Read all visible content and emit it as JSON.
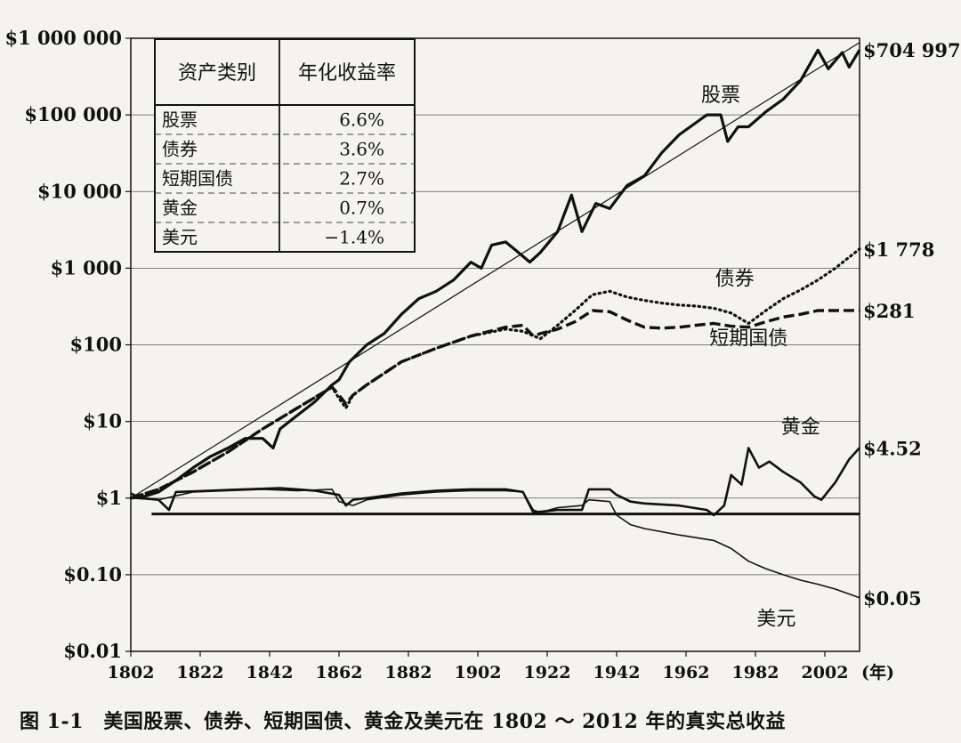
{
  "chart_data": {
    "type": "line",
    "y_scale": "log",
    "ylim": [
      0.01,
      1000000
    ],
    "y_tick_labels": [
      "$1 000 000",
      "$100 000",
      "$10 000",
      "$1 000",
      "$100",
      "$10",
      "$1",
      "$0.10",
      "$0.01"
    ],
    "y_tick_values": [
      1000000,
      100000,
      10000,
      1000,
      100,
      10,
      1,
      0.1,
      0.01
    ],
    "xlim": [
      1802,
      2012
    ],
    "x_tick_labels": [
      "1802",
      "1822",
      "1842",
      "1862",
      "1882",
      "1902",
      "1922",
      "1942",
      "1962",
      "1982",
      "2002"
    ],
    "x_tick_values": [
      1802,
      1822,
      1842,
      1862,
      1882,
      1902,
      1922,
      1942,
      1962,
      1982,
      2002
    ],
    "x_unit_label": "(年)",
    "series": [
      {
        "name": "股票",
        "end_label": "$704 997",
        "style": "solid-thick",
        "points": [
          [
            1802,
            1
          ],
          [
            1806,
            1.05
          ],
          [
            1810,
            1.2
          ],
          [
            1815,
            1.7
          ],
          [
            1820,
            2.5
          ],
          [
            1825,
            3.5
          ],
          [
            1830,
            4.5
          ],
          [
            1835,
            6
          ],
          [
            1840,
            6
          ],
          [
            1843,
            4.5
          ],
          [
            1845,
            8
          ],
          [
            1850,
            12
          ],
          [
            1855,
            18
          ],
          [
            1860,
            30
          ],
          [
            1862,
            35
          ],
          [
            1865,
            60
          ],
          [
            1870,
            100
          ],
          [
            1875,
            140
          ],
          [
            1880,
            250
          ],
          [
            1885,
            400
          ],
          [
            1890,
            500
          ],
          [
            1895,
            700
          ],
          [
            1900,
            1200
          ],
          [
            1903,
            1000
          ],
          [
            1906,
            2000
          ],
          [
            1910,
            2200
          ],
          [
            1913,
            1700
          ],
          [
            1917,
            1200
          ],
          [
            1920,
            1600
          ],
          [
            1925,
            3000
          ],
          [
            1929,
            9000
          ],
          [
            1932,
            3000
          ],
          [
            1936,
            7000
          ],
          [
            1940,
            6000
          ],
          [
            1945,
            12000
          ],
          [
            1950,
            16000
          ],
          [
            1955,
            32000
          ],
          [
            1960,
            55000
          ],
          [
            1965,
            80000
          ],
          [
            1968,
            100000
          ],
          [
            1972,
            100000
          ],
          [
            1974,
            45000
          ],
          [
            1977,
            70000
          ],
          [
            1980,
            70000
          ],
          [
            1985,
            110000
          ],
          [
            1990,
            160000
          ],
          [
            1995,
            280000
          ],
          [
            2000,
            700000
          ],
          [
            2003,
            400000
          ],
          [
            2007,
            650000
          ],
          [
            2009,
            420000
          ],
          [
            2012,
            704997
          ]
        ]
      },
      {
        "name": "",
        "style": "solid-thin-trend",
        "points": [
          [
            1802,
            1
          ],
          [
            2012,
            880000
          ]
        ]
      },
      {
        "name": "债券",
        "end_label": "$1 778",
        "style": "dotted",
        "points": [
          [
            1802,
            1
          ],
          [
            1810,
            1.3
          ],
          [
            1820,
            2.2
          ],
          [
            1830,
            4
          ],
          [
            1840,
            8
          ],
          [
            1850,
            15
          ],
          [
            1860,
            28
          ],
          [
            1862,
            20
          ],
          [
            1864,
            15
          ],
          [
            1866,
            22
          ],
          [
            1870,
            30
          ],
          [
            1880,
            60
          ],
          [
            1890,
            90
          ],
          [
            1900,
            130
          ],
          [
            1910,
            160
          ],
          [
            1915,
            150
          ],
          [
            1920,
            120
          ],
          [
            1925,
            180
          ],
          [
            1930,
            280
          ],
          [
            1935,
            450
          ],
          [
            1940,
            500
          ],
          [
            1945,
            420
          ],
          [
            1950,
            380
          ],
          [
            1955,
            350
          ],
          [
            1960,
            330
          ],
          [
            1965,
            320
          ],
          [
            1970,
            300
          ],
          [
            1975,
            260
          ],
          [
            1980,
            190
          ],
          [
            1985,
            280
          ],
          [
            1990,
            400
          ],
          [
            1995,
            520
          ],
          [
            2000,
            700
          ],
          [
            2005,
            1000
          ],
          [
            2012,
            1778
          ]
        ]
      },
      {
        "name": "短期国债",
        "end_label": "$281",
        "style": "dashed",
        "points": [
          [
            1802,
            1
          ],
          [
            1810,
            1.3
          ],
          [
            1820,
            2.2
          ],
          [
            1830,
            4
          ],
          [
            1840,
            8
          ],
          [
            1850,
            15
          ],
          [
            1860,
            28
          ],
          [
            1862,
            22
          ],
          [
            1864,
            17
          ],
          [
            1866,
            22
          ],
          [
            1870,
            30
          ],
          [
            1880,
            60
          ],
          [
            1890,
            90
          ],
          [
            1900,
            130
          ],
          [
            1910,
            170
          ],
          [
            1915,
            180
          ],
          [
            1918,
            130
          ],
          [
            1920,
            140
          ],
          [
            1925,
            160
          ],
          [
            1930,
            200
          ],
          [
            1935,
            280
          ],
          [
            1940,
            270
          ],
          [
            1945,
            210
          ],
          [
            1950,
            170
          ],
          [
            1955,
            165
          ],
          [
            1960,
            170
          ],
          [
            1965,
            180
          ],
          [
            1970,
            190
          ],
          [
            1975,
            175
          ],
          [
            1980,
            170
          ],
          [
            1985,
            200
          ],
          [
            1990,
            230
          ],
          [
            1995,
            250
          ],
          [
            2000,
            280
          ],
          [
            2005,
            280
          ],
          [
            2012,
            281
          ]
        ]
      },
      {
        "name": "黄金",
        "end_label": "$4.52",
        "style": "solid-medium",
        "points": [
          [
            1802,
            1.15
          ],
          [
            1805,
            1.0
          ],
          [
            1810,
            0.95
          ],
          [
            1813,
            0.7
          ],
          [
            1815,
            1.2
          ],
          [
            1825,
            1.25
          ],
          [
            1835,
            1.3
          ],
          [
            1845,
            1.35
          ],
          [
            1855,
            1.25
          ],
          [
            1862,
            1.1
          ],
          [
            1864,
            0.8
          ],
          [
            1866,
            0.95
          ],
          [
            1870,
            1.0
          ],
          [
            1880,
            1.15
          ],
          [
            1890,
            1.25
          ],
          [
            1900,
            1.3
          ],
          [
            1910,
            1.3
          ],
          [
            1915,
            1.2
          ],
          [
            1918,
            0.65
          ],
          [
            1925,
            0.7
          ],
          [
            1932,
            0.7
          ],
          [
            1934,
            1.3
          ],
          [
            1940,
            1.3
          ],
          [
            1942,
            1.1
          ],
          [
            1946,
            0.9
          ],
          [
            1950,
            0.85
          ],
          [
            1960,
            0.8
          ],
          [
            1968,
            0.7
          ],
          [
            1970,
            0.6
          ],
          [
            1973,
            0.8
          ],
          [
            1975,
            2
          ],
          [
            1978,
            1.5
          ],
          [
            1980,
            4.5
          ],
          [
            1983,
            2.5
          ],
          [
            1986,
            3
          ],
          [
            1990,
            2.2
          ],
          [
            1995,
            1.6
          ],
          [
            1999,
            1.05
          ],
          [
            2001,
            0.95
          ],
          [
            2005,
            1.6
          ],
          [
            2009,
            3.2
          ],
          [
            2012,
            4.52
          ]
        ]
      },
      {
        "name": "美元",
        "end_label": "$0.05",
        "style": "solid-thin",
        "points": [
          [
            1802,
            1
          ],
          [
            1810,
            0.95
          ],
          [
            1820,
            1.2
          ],
          [
            1830,
            1.25
          ],
          [
            1840,
            1.3
          ],
          [
            1850,
            1.25
          ],
          [
            1860,
            1.3
          ],
          [
            1862,
            0.9
          ],
          [
            1866,
            0.8
          ],
          [
            1870,
            0.95
          ],
          [
            1880,
            1.1
          ],
          [
            1890,
            1.2
          ],
          [
            1900,
            1.25
          ],
          [
            1910,
            1.25
          ],
          [
            1915,
            1.2
          ],
          [
            1918,
            0.7
          ],
          [
            1920,
            0.65
          ],
          [
            1925,
            0.75
          ],
          [
            1932,
            0.8
          ],
          [
            1934,
            0.95
          ],
          [
            1940,
            0.9
          ],
          [
            1942,
            0.6
          ],
          [
            1946,
            0.45
          ],
          [
            1950,
            0.4
          ],
          [
            1960,
            0.33
          ],
          [
            1970,
            0.28
          ],
          [
            1975,
            0.22
          ],
          [
            1980,
            0.15
          ],
          [
            1985,
            0.12
          ],
          [
            1990,
            0.1
          ],
          [
            1995,
            0.085
          ],
          [
            2000,
            0.075
          ],
          [
            2005,
            0.065
          ],
          [
            2012,
            0.05
          ]
        ]
      },
      {
        "name": "",
        "style": "solid-thick-reference",
        "points": [
          [
            1808,
            0.62
          ],
          [
            2012,
            0.62
          ]
        ]
      }
    ],
    "table": {
      "headers": [
        "资产类别",
        "年化收益率"
      ],
      "rows": [
        [
          "股票",
          "6.6%"
        ],
        [
          "债券",
          "3.6%"
        ],
        [
          "短期国债",
          "2.7%"
        ],
        [
          "黄金",
          "0.7%"
        ],
        [
          "美元",
          "−1.4%"
        ]
      ]
    },
    "caption": "图 1-1　美国股票、债券、短期国债、黄金及美元在 1802 ～ 2012 年的真实总收益"
  }
}
